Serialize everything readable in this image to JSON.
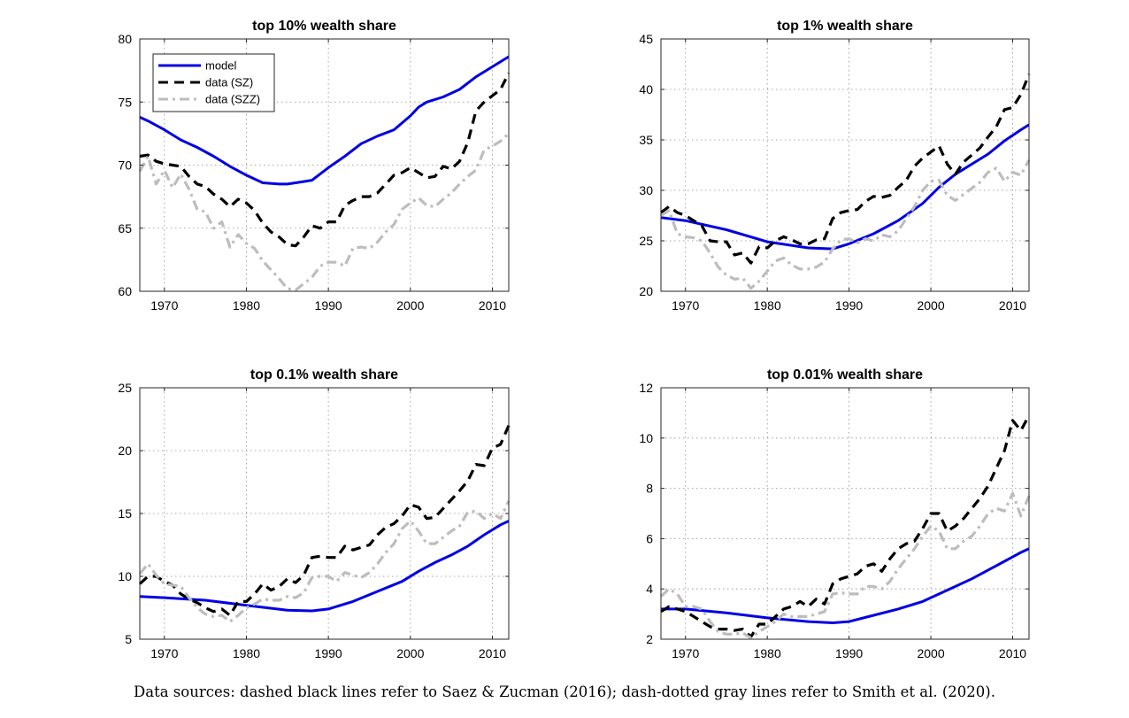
{
  "caption": "Data sources: dashed black lines refer to Saez & Zucman (2016); dash-dotted gray lines refer to Smith et al. (2020).",
  "colors": {
    "model": "#0000e6",
    "data_sz": "#000000",
    "data_szz": "#bdbdbd"
  },
  "chart_data": [
    {
      "type": "line",
      "title": "top 10% wealth share",
      "xlabel": "",
      "ylabel": "",
      "xlim": [
        1967,
        2012
      ],
      "ylim": [
        60,
        80
      ],
      "xticks": [
        1970,
        1980,
        1990,
        2000,
        2010
      ],
      "yticks": [
        60,
        65,
        70,
        75,
        80
      ],
      "grid": true,
      "legend": {
        "placement": "top-left",
        "entries": [
          "model",
          "data (SZ)",
          "data (SZZ)"
        ]
      },
      "series": [
        {
          "name": "model",
          "style": "solid",
          "x": [
            1967,
            1968,
            1970,
            1972,
            1974,
            1976,
            1978,
            1980,
            1982,
            1984,
            1985,
            1986,
            1988,
            1990,
            1992,
            1994,
            1996,
            1998,
            2000,
            2001,
            2002,
            2004,
            2006,
            2008,
            2010,
            2012
          ],
          "y": [
            73.8,
            73.5,
            72.8,
            72.0,
            71.4,
            70.7,
            69.9,
            69.2,
            68.6,
            68.5,
            68.5,
            68.6,
            68.8,
            69.8,
            70.7,
            71.7,
            72.3,
            72.8,
            73.9,
            74.6,
            75.0,
            75.4,
            76.0,
            77.0,
            77.8,
            78.6
          ]
        },
        {
          "name": "data (SZ)",
          "style": "dashed",
          "x": [
            1967,
            1968,
            1969,
            1970,
            1971,
            1972,
            1973,
            1974,
            1975,
            1976,
            1977,
            1978,
            1979,
            1980,
            1981,
            1982,
            1983,
            1984,
            1985,
            1986,
            1987,
            1988,
            1989,
            1990,
            1991,
            1992,
            1993,
            1994,
            1995,
            1996,
            1997,
            1998,
            1999,
            2000,
            2001,
            2002,
            2003,
            2004,
            2005,
            2006,
            2007,
            2008,
            2009,
            2010,
            2011,
            2012
          ],
          "y": [
            70.7,
            70.8,
            70.3,
            70.1,
            70.0,
            69.9,
            69.1,
            68.5,
            68.3,
            67.7,
            67.3,
            66.7,
            67.3,
            67.0,
            66.4,
            65.4,
            64.7,
            64.3,
            63.7,
            63.6,
            64.3,
            65.2,
            65.0,
            65.5,
            65.5,
            66.8,
            67.2,
            67.5,
            67.5,
            67.8,
            68.5,
            69.2,
            69.4,
            69.8,
            69.4,
            69.0,
            69.1,
            69.9,
            69.7,
            70.3,
            71.8,
            74.3,
            75.0,
            75.5,
            76.0,
            77.3
          ]
        },
        {
          "name": "data (SZZ)",
          "style": "dash-dot",
          "x": [
            1967,
            1968,
            1969,
            1970,
            1971,
            1972,
            1973,
            1974,
            1975,
            1976,
            1977,
            1978,
            1979,
            1980,
            1981,
            1982,
            1983,
            1984,
            1985,
            1986,
            1987,
            1988,
            1989,
            1990,
            1991,
            1992,
            1993,
            1994,
            1995,
            1996,
            1997,
            1998,
            1999,
            2000,
            2001,
            2002,
            2003,
            2004,
            2005,
            2006,
            2007,
            2008,
            2009,
            2010,
            2011,
            2012
          ],
          "y": [
            69.5,
            70.7,
            68.5,
            69.6,
            68.2,
            69.3,
            68.1,
            66.5,
            66.3,
            65.0,
            65.5,
            63.5,
            64.5,
            63.8,
            63.4,
            62.4,
            61.7,
            61.0,
            60.2,
            60.1,
            60.6,
            61.1,
            62.0,
            62.3,
            62.3,
            62.0,
            63.4,
            63.5,
            63.4,
            63.9,
            64.7,
            65.3,
            66.5,
            67.0,
            67.4,
            66.8,
            66.7,
            67.3,
            67.8,
            68.5,
            69.1,
            69.6,
            71.2,
            71.5,
            71.9,
            72.5
          ]
        }
      ]
    },
    {
      "type": "line",
      "title": "top 1% wealth share",
      "xlabel": "",
      "ylabel": "",
      "xlim": [
        1967,
        2012
      ],
      "ylim": [
        20,
        45
      ],
      "xticks": [
        1970,
        1980,
        1990,
        2000,
        2010
      ],
      "yticks": [
        20,
        25,
        30,
        35,
        40,
        45
      ],
      "grid": true,
      "series": [
        {
          "name": "model",
          "style": "solid",
          "x": [
            1967,
            1970,
            1975,
            1980,
            1985,
            1988,
            1990,
            1993,
            1996,
            1999,
            2001,
            2003,
            2005,
            2007,
            2009,
            2011,
            2012
          ],
          "y": [
            27.3,
            27.0,
            26.1,
            24.9,
            24.3,
            24.2,
            24.7,
            25.7,
            27.0,
            28.7,
            30.3,
            31.6,
            32.6,
            33.6,
            34.9,
            36.0,
            36.5
          ]
        },
        {
          "name": "data (SZ)",
          "style": "dashed",
          "x": [
            1967,
            1968,
            1969,
            1970,
            1971,
            1972,
            1973,
            1974,
            1975,
            1976,
            1977,
            1978,
            1979,
            1980,
            1981,
            1982,
            1983,
            1984,
            1985,
            1986,
            1987,
            1988,
            1989,
            1990,
            1991,
            1992,
            1993,
            1994,
            1995,
            1996,
            1997,
            1998,
            1999,
            2000,
            2001,
            2002,
            2003,
            2004,
            2005,
            2006,
            2007,
            2008,
            2009,
            2010,
            2011,
            2012
          ],
          "y": [
            27.8,
            28.4,
            27.8,
            27.5,
            27.0,
            26.5,
            25.0,
            24.9,
            24.9,
            23.6,
            23.8,
            22.8,
            24.4,
            24.3,
            25.0,
            25.4,
            25.1,
            24.7,
            24.7,
            25.1,
            25.2,
            27.2,
            27.8,
            28.0,
            28.1,
            28.9,
            29.4,
            29.3,
            29.5,
            30.3,
            31.0,
            32.4,
            33.2,
            33.8,
            34.4,
            32.6,
            31.6,
            32.8,
            33.5,
            34.2,
            35.3,
            36.3,
            38.0,
            38.2,
            39.5,
            41.5
          ]
        },
        {
          "name": "data (SZZ)",
          "style": "dash-dot",
          "x": [
            1967,
            1968,
            1969,
            1970,
            1971,
            1972,
            1973,
            1974,
            1975,
            1976,
            1977,
            1978,
            1979,
            1980,
            1981,
            1982,
            1983,
            1984,
            1985,
            1986,
            1987,
            1988,
            1989,
            1990,
            1991,
            1992,
            1993,
            1994,
            1995,
            1996,
            1997,
            1998,
            1999,
            2000,
            2001,
            2002,
            2003,
            2004,
            2005,
            2006,
            2007,
            2008,
            2009,
            2010,
            2011,
            2012
          ],
          "y": [
            27.5,
            28.0,
            25.7,
            25.4,
            25.3,
            25.0,
            23.8,
            22.4,
            21.6,
            21.2,
            21.3,
            20.3,
            21.0,
            22.0,
            23.0,
            23.3,
            22.6,
            22.2,
            22.2,
            22.4,
            22.9,
            24.2,
            25.1,
            25.2,
            24.8,
            25.2,
            25.0,
            25.6,
            25.4,
            26.0,
            27.2,
            28.4,
            30.0,
            30.9,
            31.0,
            29.5,
            29.0,
            29.6,
            30.2,
            30.8,
            31.8,
            32.2,
            30.9,
            31.8,
            31.5,
            33.0
          ]
        }
      ]
    },
    {
      "type": "line",
      "title": "top 0.1% wealth share",
      "xlabel": "",
      "ylabel": "",
      "xlim": [
        1967,
        2012
      ],
      "ylim": [
        5,
        25
      ],
      "xticks": [
        1970,
        1980,
        1990,
        2000,
        2010
      ],
      "yticks": [
        5,
        10,
        15,
        20,
        25
      ],
      "grid": true,
      "series": [
        {
          "name": "model",
          "style": "solid",
          "x": [
            1967,
            1970,
            1975,
            1980,
            1985,
            1988,
            1990,
            1993,
            1996,
            1999,
            2001,
            2003,
            2005,
            2007,
            2009,
            2011,
            2012
          ],
          "y": [
            8.4,
            8.3,
            8.1,
            7.7,
            7.3,
            7.25,
            7.4,
            8.0,
            8.8,
            9.6,
            10.4,
            11.1,
            11.7,
            12.4,
            13.3,
            14.1,
            14.4
          ]
        },
        {
          "name": "data (SZ)",
          "style": "dashed",
          "x": [
            1967,
            1968,
            1969,
            1970,
            1971,
            1972,
            1973,
            1974,
            1975,
            1976,
            1977,
            1978,
            1979,
            1980,
            1981,
            1982,
            1983,
            1984,
            1985,
            1986,
            1987,
            1988,
            1989,
            1990,
            1991,
            1992,
            1993,
            1994,
            1995,
            1996,
            1997,
            1998,
            1999,
            2000,
            2001,
            2002,
            2003,
            2004,
            2005,
            2006,
            2007,
            2008,
            2009,
            2010,
            2011,
            2012
          ],
          "y": [
            9.4,
            10.0,
            10.0,
            9.6,
            9.3,
            8.6,
            8.2,
            7.9,
            7.5,
            7.2,
            7.4,
            6.9,
            8.0,
            8.0,
            8.6,
            9.4,
            8.9,
            9.2,
            9.8,
            9.5,
            10.1,
            11.5,
            11.6,
            11.5,
            11.5,
            12.4,
            12.1,
            12.3,
            12.5,
            13.3,
            13.9,
            14.2,
            14.8,
            15.7,
            15.5,
            14.6,
            14.7,
            15.4,
            16.1,
            16.8,
            17.6,
            18.9,
            18.8,
            20.2,
            20.5,
            22.0
          ]
        },
        {
          "name": "data (SZZ)",
          "style": "dash-dot",
          "x": [
            1967,
            1968,
            1969,
            1970,
            1971,
            1972,
            1973,
            1974,
            1975,
            1976,
            1977,
            1978,
            1979,
            1980,
            1981,
            1982,
            1983,
            1984,
            1985,
            1986,
            1987,
            1988,
            1989,
            1990,
            1991,
            1992,
            1993,
            1994,
            1995,
            1996,
            1997,
            1998,
            1999,
            2000,
            2001,
            2002,
            2003,
            2004,
            2005,
            2006,
            2007,
            2008,
            2009,
            2010,
            2011,
            2012
          ],
          "y": [
            10.2,
            11.0,
            10.1,
            9.4,
            9.3,
            9.2,
            8.3,
            7.5,
            7.0,
            6.8,
            6.9,
            6.4,
            6.9,
            7.5,
            7.8,
            8.2,
            8.1,
            8.1,
            8.4,
            8.3,
            8.7,
            9.9,
            10.0,
            10.0,
            9.6,
            10.3,
            10.1,
            9.9,
            10.3,
            11.0,
            11.9,
            12.6,
            13.8,
            14.4,
            13.6,
            12.6,
            12.6,
            13.1,
            13.6,
            14.0,
            15.1,
            15.2,
            14.6,
            15.0,
            14.6,
            16.0
          ]
        }
      ]
    },
    {
      "type": "line",
      "title": "top 0.01% wealth share",
      "xlabel": "",
      "ylabel": "",
      "xlim": [
        1967,
        2012
      ],
      "ylim": [
        2,
        12
      ],
      "xticks": [
        1970,
        1980,
        1990,
        2000,
        2010
      ],
      "yticks": [
        2,
        4,
        6,
        8,
        10,
        12
      ],
      "grid": true,
      "series": [
        {
          "name": "model",
          "style": "solid",
          "x": [
            1967,
            1970,
            1975,
            1980,
            1985,
            1988,
            1990,
            1993,
            1996,
            1999,
            2001,
            2003,
            2005,
            2007,
            2009,
            2011,
            2012
          ],
          "y": [
            3.2,
            3.2,
            3.05,
            2.85,
            2.7,
            2.65,
            2.7,
            2.95,
            3.2,
            3.5,
            3.8,
            4.1,
            4.4,
            4.75,
            5.1,
            5.45,
            5.6
          ]
        },
        {
          "name": "data (SZ)",
          "style": "dashed",
          "x": [
            1967,
            1968,
            1969,
            1970,
            1971,
            1972,
            1973,
            1974,
            1975,
            1976,
            1977,
            1978,
            1979,
            1980,
            1981,
            1982,
            1983,
            1984,
            1985,
            1986,
            1987,
            1988,
            1989,
            1990,
            1991,
            1992,
            1993,
            1994,
            1995,
            1996,
            1997,
            1998,
            1999,
            2000,
            2001,
            2002,
            2003,
            2004,
            2005,
            2006,
            2007,
            2008,
            2009,
            2010,
            2011,
            2012
          ],
          "y": [
            3.1,
            3.3,
            3.2,
            3.1,
            2.9,
            2.7,
            2.5,
            2.4,
            2.4,
            2.35,
            2.4,
            2.1,
            2.6,
            2.6,
            2.9,
            3.2,
            3.3,
            3.5,
            3.3,
            3.6,
            3.4,
            4.2,
            4.4,
            4.5,
            4.6,
            4.9,
            5.0,
            4.7,
            5.2,
            5.6,
            5.8,
            5.9,
            6.4,
            7.0,
            7.0,
            6.3,
            6.5,
            6.8,
            7.2,
            7.6,
            8.1,
            8.8,
            9.5,
            10.7,
            10.3,
            10.9
          ]
        },
        {
          "name": "data (SZZ)",
          "style": "dash-dot",
          "x": [
            1967,
            1968,
            1969,
            1970,
            1971,
            1972,
            1973,
            1974,
            1975,
            1976,
            1977,
            1978,
            1979,
            1980,
            1981,
            1982,
            1983,
            1984,
            1985,
            1986,
            1987,
            1988,
            1989,
            1990,
            1991,
            1992,
            1993,
            1994,
            1995,
            1996,
            1997,
            1998,
            1999,
            2000,
            2001,
            2002,
            2003,
            2004,
            2005,
            2006,
            2007,
            2008,
            2009,
            2010,
            2011,
            2012
          ],
          "y": [
            3.7,
            4.0,
            3.8,
            3.3,
            3.3,
            3.2,
            2.7,
            2.3,
            2.2,
            2.2,
            2.25,
            2.05,
            2.3,
            2.5,
            2.7,
            3.0,
            2.9,
            2.9,
            2.9,
            3.0,
            3.1,
            3.8,
            3.85,
            3.8,
            3.8,
            4.1,
            4.1,
            4.0,
            4.3,
            4.8,
            5.2,
            5.6,
            6.1,
            6.5,
            6.3,
            5.6,
            5.6,
            5.9,
            6.1,
            6.5,
            7.0,
            7.2,
            7.1,
            7.8,
            6.9,
            7.7
          ]
        }
      ]
    }
  ]
}
